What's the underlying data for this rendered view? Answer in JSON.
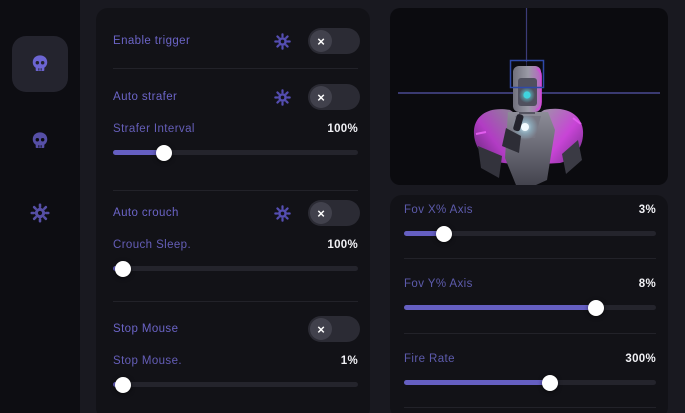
{
  "colors": {
    "accent": "#655fc2",
    "page_bg": "#191920",
    "sidebar_bg": "#0d0d12",
    "card_bg": "#121217",
    "viewport_bg": "#0b0b0f",
    "crosshair": "#5656ac",
    "headbox_outline": "#2e49a8",
    "robot_rim_magenta": "#d63ae6",
    "robot_emblem_cyan": "#3fd4de"
  },
  "sidebar": {
    "items": [
      {
        "icon": "skull-icon",
        "active": true
      },
      {
        "icon": "skull-icon",
        "active": false
      },
      {
        "icon": "gear-icon",
        "active": false
      }
    ]
  },
  "toggle": {
    "off_glyph": "×",
    "state_off": "off"
  },
  "middle": {
    "toggles": [
      {
        "label": "Enable trigger",
        "has_settings": true,
        "state": "off"
      },
      {
        "label": "Auto strafer",
        "has_settings": true,
        "state": "off"
      },
      {
        "label": "Auto crouch",
        "has_settings": true,
        "state": "off"
      },
      {
        "label": "Stop Mouse",
        "has_settings": false,
        "state": "off"
      }
    ],
    "sliders": [
      {
        "label": "Strafer Interval",
        "value": "100%",
        "fill_pct": 21
      },
      {
        "label": "Crouch Sleep.",
        "value": "100%",
        "fill_pct": 4
      },
      {
        "label": "Stop Mouse.",
        "value": "1%",
        "fill_pct": 4
      }
    ]
  },
  "right": {
    "viewport": {
      "subject": "robot aim preview with crosshair and head box"
    },
    "sliders": [
      {
        "label": "Fov X% Axis",
        "value": "3%",
        "fill_pct": 16
      },
      {
        "label": "Fov Y% Axis",
        "value": "8%",
        "fill_pct": 76
      },
      {
        "label": "Fire Rate",
        "value": "300%",
        "fill_pct": 58
      }
    ]
  }
}
